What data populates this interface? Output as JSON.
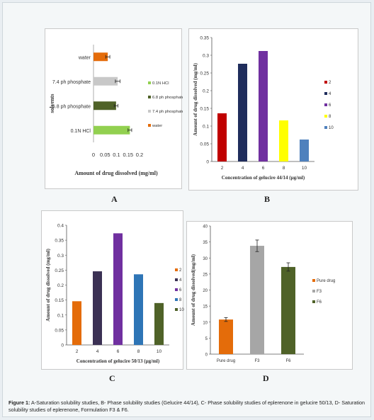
{
  "caption": {
    "bold": "Figure 1:",
    "text": " A-Saturation solubility studies, B- Phase solubility studies (Gelucire 44/14), C- Phase solubility studies of eplerenone in gelucire 50/13, D- Saturation solubility studies of eplerenone, Formulation F3 & F6."
  },
  "panel_labels": {
    "a": "A",
    "b": "B",
    "c": "C",
    "d": "D"
  },
  "chart_data": [
    {
      "id": "A",
      "type": "bar",
      "orientation": "horizontal",
      "categories": [
        "0.1N HCl",
        "6.8 ph phosphate",
        "7.4 ph phosphate",
        "water"
      ],
      "values": [
        0.158,
        0.098,
        0.105,
        0.062
      ],
      "errors": [
        0.008,
        0.008,
        0.01,
        0.009
      ],
      "colors": [
        "#92d050",
        "#4f6228",
        "#c8c8c8",
        "#e46c0a"
      ],
      "xlim": [
        0,
        0.2
      ],
      "xticks": [
        "0",
        "0.05",
        "0.1",
        "0.15",
        "0.2"
      ],
      "xlabel": "Amount of drug dissolved (mg/ml)",
      "ylabel": "solvents",
      "legend": [
        "0.1N HCl",
        "6.8 ph phosphate",
        "7.4 ph phosphate",
        "water"
      ],
      "legend_position": "right"
    },
    {
      "id": "B",
      "type": "bar",
      "categories": [
        "2",
        "4",
        "6",
        "8",
        "10"
      ],
      "values": [
        0.136,
        0.276,
        0.312,
        0.116,
        0.062
      ],
      "colors": [
        "#c00000",
        "#1f2d5c",
        "#7030a0",
        "#ffff00",
        "#4f81bd"
      ],
      "ylim": [
        0,
        0.35
      ],
      "yticks": [
        "0",
        "0.05",
        "0.1",
        "0.15",
        "0.2",
        "0.25",
        "0.3",
        "0.35"
      ],
      "xlabel": "Concentration of gelucire 44/14 (µg/ml)",
      "ylabel": "Amount of drug dissolved (mg/ml)",
      "legend": [
        "2",
        "4",
        "6",
        "8",
        "10"
      ],
      "legend_position": "right"
    },
    {
      "id": "C",
      "type": "bar",
      "categories": [
        "2",
        "4",
        "6",
        "8",
        "10"
      ],
      "values": [
        0.146,
        0.246,
        0.373,
        0.236,
        0.14
      ],
      "colors": [
        "#e46c0a",
        "#3b3154",
        "#7030a0",
        "#2e75b6",
        "#4f6228"
      ],
      "ylim": [
        0,
        0.4
      ],
      "yticks": [
        "0",
        "0.05",
        "0.1",
        "0.15",
        "0.2",
        "0.25",
        "0.3",
        "0.35",
        "0.4"
      ],
      "xlabel": "Concentration of gelucire 50/13 (µg/ml)",
      "ylabel": "Amount of drug dissolved (mg/ml)",
      "legend": [
        "2",
        "4",
        "6",
        "8",
        "10"
      ],
      "legend_position": "right"
    },
    {
      "id": "D",
      "type": "bar",
      "categories": [
        "Pure drug",
        "F3",
        "F6"
      ],
      "values": [
        10.8,
        33.8,
        27.2
      ],
      "errors": [
        0.6,
        1.8,
        1.3
      ],
      "colors": [
        "#e46c0a",
        "#a6a6a6",
        "#4f6228"
      ],
      "ylim": [
        0,
        40
      ],
      "yticks": [
        "0",
        "5",
        "10",
        "15",
        "20",
        "25",
        "30",
        "35",
        "40"
      ],
      "xlabel": "",
      "ylabel": "Amount of drug dissolved(mg/ml)",
      "legend": [
        "Pure drug",
        "F3",
        "F6"
      ],
      "legend_position": "right"
    }
  ]
}
